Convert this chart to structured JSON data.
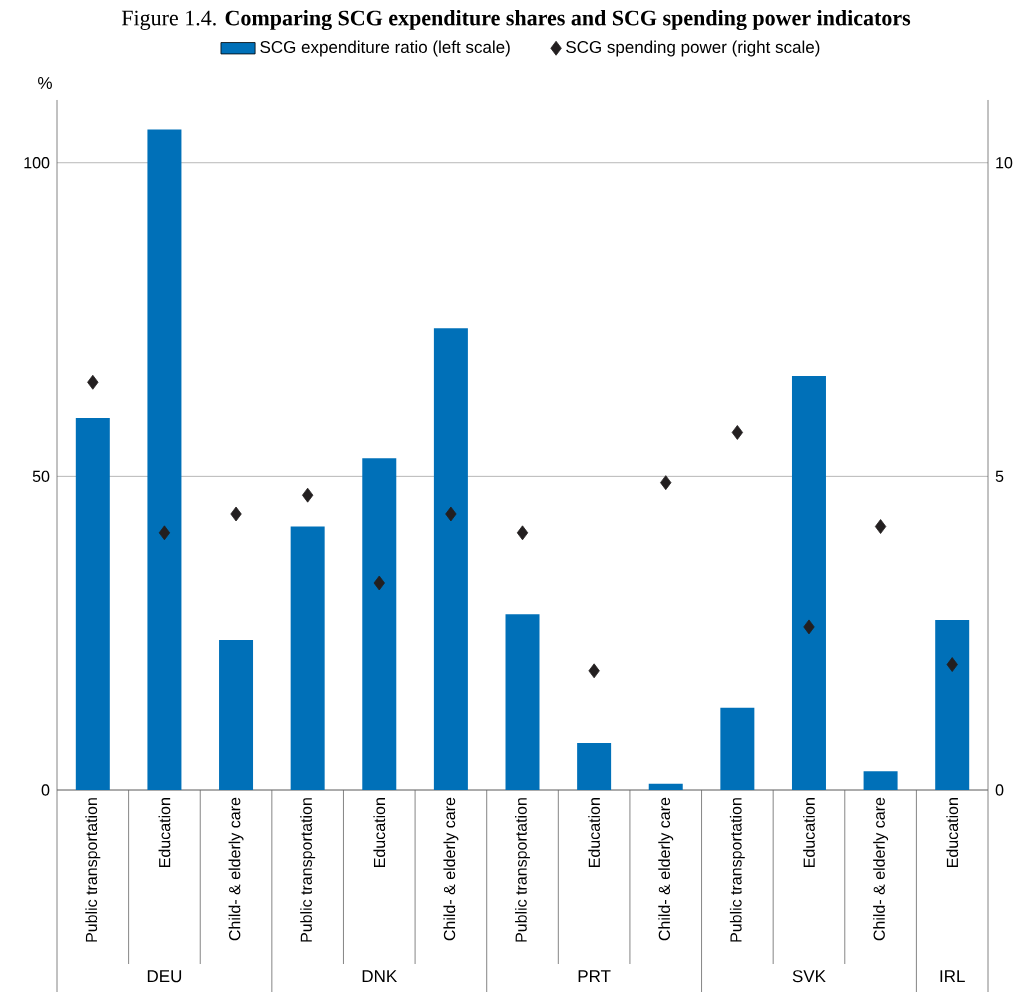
{
  "chart_data": {
    "type": "bar",
    "title": "Figure 1.4. **Comparing SCG expenditure shares and SCG spending power indicators**",
    "ylabel": "%",
    "categories": [
      "Public transportation",
      "Education",
      "Child- & elderly care",
      "Public transportation",
      "Education",
      "Child- & elderly care",
      "Public transportation",
      "Education",
      "Child- & elderly care",
      "Public transportation",
      "Education",
      "Child- & elderly care",
      "Education"
    ],
    "series": [
      {
        "name": "SCG expenditure ratio (left scale)",
        "color": "#0070b8",
        "values": [
          59.3,
          105.3,
          23.9,
          42.0,
          52.9,
          73.6,
          28.0,
          7.5,
          1.0,
          13.1,
          66.0,
          3.0,
          27.1
        ]
      },
      {
        "name": "SCG spending power (right scale)",
        "type": "scatter",
        "axis": "y2",
        "marker": "diamond",
        "color": "#231f20",
        "values": [
          6.5,
          4.1,
          4.4,
          4.7,
          3.3,
          4.4,
          4.1,
          1.9,
          4.9,
          5.7,
          2.6,
          4.2,
          2.0
        ]
      }
    ],
    "ylim": [
      0,
      110
    ],
    "yticks": [
      0,
      50,
      100
    ],
    "y2lim": [
      0,
      11
    ],
    "y2ticks": [
      0,
      5,
      10
    ],
    "grid": "y",
    "legend": "top",
    "annotations": [
      "DEU",
      "DNK",
      "PRT",
      "SVK",
      "IRL"
    ]
  }
}
